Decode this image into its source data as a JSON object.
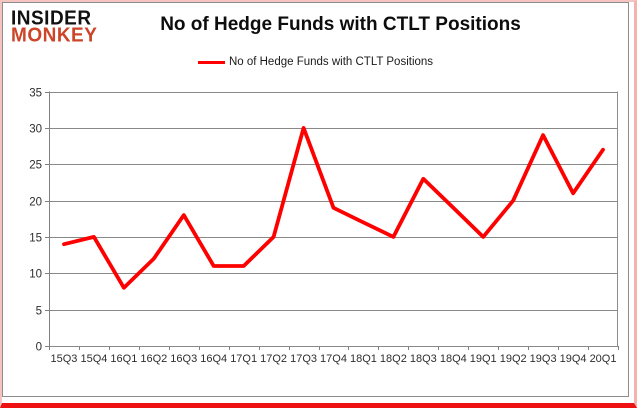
{
  "branding": {
    "logo_line1": "INSIDER",
    "logo_line2": "MONKEY",
    "logo_color_top": "#111111",
    "logo_color_bottom": "#cc4528"
  },
  "header": {
    "title": "No of Hedge Funds with CTLT Positions"
  },
  "legend": {
    "label": "No of Hedge Funds with CTLT Positions",
    "swatch_color": "#ff0000",
    "position": "top-center"
  },
  "chart_data": {
    "type": "line",
    "title": "No of Hedge Funds with CTLT Positions",
    "categories": [
      "15Q3",
      "15Q4",
      "16Q1",
      "16Q2",
      "16Q3",
      "16Q4",
      "17Q1",
      "17Q2",
      "17Q3",
      "17Q4",
      "18Q1",
      "18Q2",
      "18Q3",
      "18Q4",
      "19Q1",
      "19Q2",
      "19Q3",
      "19Q4",
      "20Q1"
    ],
    "series": [
      {
        "name": "No of Hedge Funds with CTLT Positions",
        "color": "#ff0000",
        "values": [
          14,
          15,
          8,
          12,
          18,
          11,
          11,
          15,
          30,
          19,
          17,
          15,
          23,
          19,
          15,
          20,
          29,
          21,
          27
        ]
      }
    ],
    "xlabel": "",
    "ylabel": "",
    "ylim": [
      0,
      35
    ],
    "yticks": [
      0,
      5,
      10,
      15,
      20,
      25,
      30,
      35
    ],
    "grid": true,
    "legend_position": "top-center"
  },
  "colors": {
    "line": "#ff0000",
    "gridline": "#898989",
    "axis": "#808080",
    "tick_label": "#2e2e2e",
    "plot_border": "#8c8c8c",
    "frame_bottom": "#ee1111",
    "frame_sides": "#f5c3c0"
  }
}
